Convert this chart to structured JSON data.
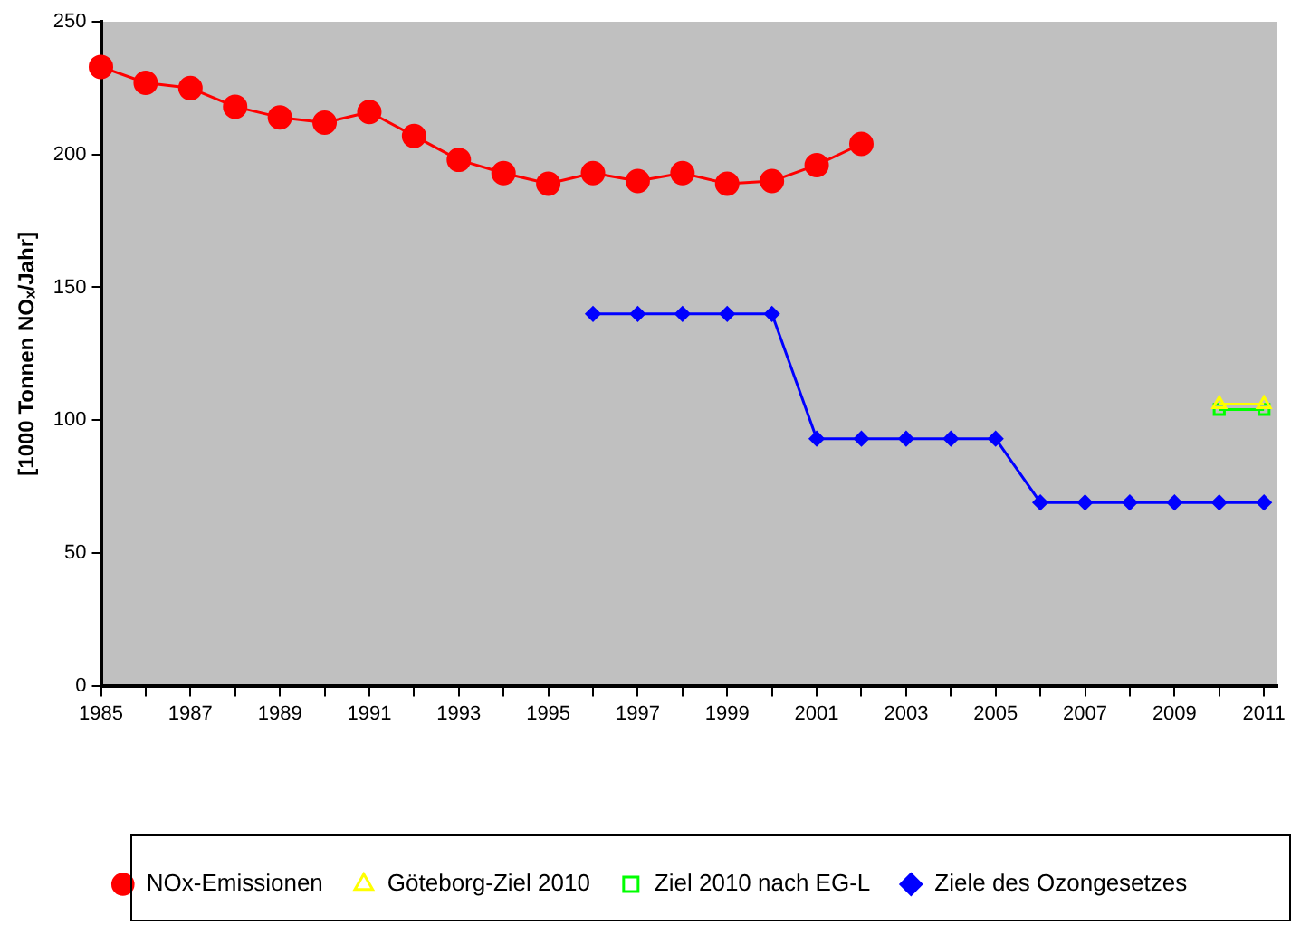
{
  "chart_data": {
    "type": "line",
    "ylabel": "[1000 Tonnen NOₓ/Jahr]",
    "xlim": [
      1985,
      2011.3
    ],
    "xticks": [
      1985,
      {
        "value": 1986,
        "label": null
      },
      1987,
      {
        "value": 1988,
        "label": null
      },
      1989,
      {
        "value": 1990,
        "label": null
      },
      1991,
      {
        "value": 1992,
        "label": null
      },
      1993,
      {
        "value": 1994,
        "label": null
      },
      1995,
      {
        "value": 1996,
        "label": null
      },
      1997,
      {
        "value": 1998,
        "label": null
      },
      1999,
      {
        "value": 2000,
        "label": null
      },
      2001,
      {
        "value": 2002,
        "label": null
      },
      2003,
      {
        "value": 2004,
        "label": null
      },
      2005,
      {
        "value": 2006,
        "label": null
      },
      2007,
      {
        "value": 2008,
        "label": null
      },
      2009,
      {
        "value": 2010,
        "label": null
      },
      2011
    ],
    "ylim": [
      0,
      250
    ],
    "yticks": [
      0,
      50,
      100,
      150,
      200,
      250
    ],
    "grid": false,
    "legend": "bottom",
    "series": [
      {
        "name": "NOx-Emissionen",
        "color": "#ff0000",
        "marker": "circle",
        "x": [
          1985,
          1986,
          1987,
          1988,
          1989,
          1990,
          1991,
          1992,
          1993,
          1994,
          1995,
          1996,
          1997,
          1998,
          1999,
          2000,
          2001,
          2002
        ],
        "values": [
          233,
          227,
          225,
          218,
          214,
          212,
          216,
          207,
          198,
          193,
          189,
          193,
          190,
          193,
          189,
          190,
          196,
          204
        ]
      },
      {
        "name": "Göteborg-Ziel 2010",
        "color": "#ffff00",
        "marker": "triangle",
        "x": [
          2010,
          2011
        ],
        "values": [
          106,
          106
        ]
      },
      {
        "name": "Ziel 2010 nach EG-L",
        "color": "#00ff00",
        "marker": "square",
        "x": [
          2010,
          2011
        ],
        "values": [
          104,
          104
        ]
      },
      {
        "name": "Ziele des Ozongesetzes",
        "color": "#0000ff",
        "marker": "diamond",
        "x": [
          1996,
          1997,
          1998,
          1999,
          2000,
          2001,
          2002,
          2003,
          2004,
          2005,
          2006,
          2007,
          2008,
          2009,
          2010,
          2011
        ],
        "values": [
          140,
          140,
          140,
          140,
          140,
          93,
          93,
          93,
          93,
          93,
          69,
          69,
          69,
          69,
          69,
          69
        ]
      }
    ]
  }
}
